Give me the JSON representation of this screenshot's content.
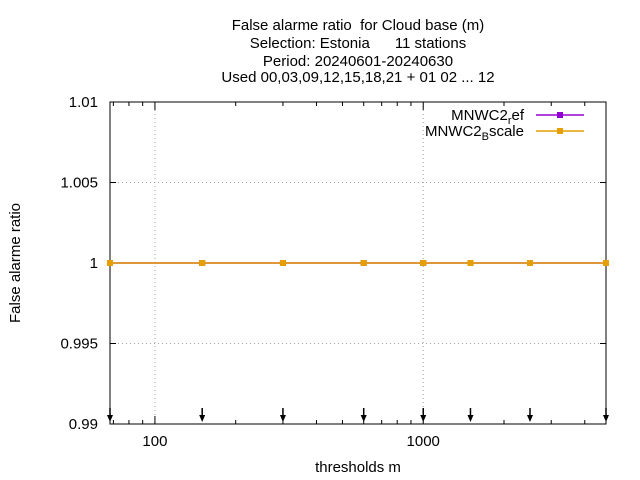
{
  "chart_data": {
    "type": "line",
    "title_lines": [
      "False alarme ratio  for Cloud base (m)",
      "Selection: Estonia      11 stations",
      "Period: 20240601-20240630",
      "Used 00,03,09,12,15,18,21 + 01 02 ... 12"
    ],
    "xlabel": "thresholds m",
    "ylabel": "False alarme ratio",
    "x_scale": "log",
    "xlim": [
      68,
      4800
    ],
    "ylim": [
      0.99,
      1.01
    ],
    "x_ticks": [
      100,
      1000
    ],
    "x_tick_labels": [
      "100",
      "1000"
    ],
    "y_ticks": [
      0.99,
      0.995,
      1,
      1.005,
      1.01
    ],
    "y_tick_labels": [
      "0.99",
      "0.995",
      "1",
      "1.005",
      "1.01"
    ],
    "grid": true,
    "legend_position": "top-right",
    "x": [
      68,
      150,
      300,
      600,
      1000,
      1500,
      2500,
      4800
    ],
    "series": [
      {
        "name": "MNWC2_ref",
        "legend_main": "MNWC2",
        "legend_sub": "r",
        "legend_tail": "ef",
        "color": "#9400d3",
        "values": [
          1,
          1,
          1,
          1,
          1,
          1,
          1,
          1
        ]
      },
      {
        "name": "MNWC2_Bscale",
        "legend_main": "MNWC2",
        "legend_sub": "B",
        "legend_tail": "scale",
        "color": "#e69f00",
        "values": [
          1,
          1,
          1,
          1,
          1,
          1,
          1,
          1
        ]
      }
    ],
    "arrow_markers_x": [
      68,
      150,
      300,
      600,
      1000,
      1500,
      2500,
      4800
    ]
  }
}
